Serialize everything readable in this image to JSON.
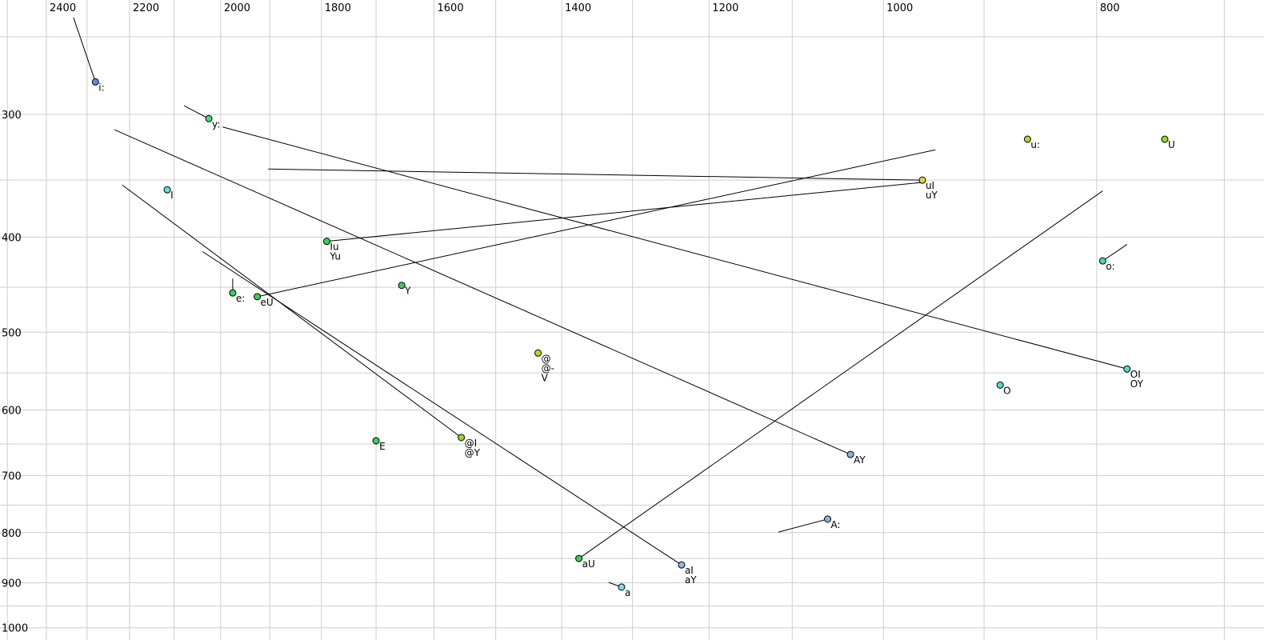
{
  "chart_data": {
    "type": "scatter",
    "title": "",
    "description": "Vowel formant chart: F2 (Hz, log scale, decreasing left-to-right) on top axis vs F1 (Hz, log scale, increasing downward) on left axis; monophthong and diphthong targets with glide trajectory lines",
    "x_axis": {
      "label": "",
      "unit": "Hz",
      "scale": "log",
      "reversed": true,
      "tick_labels": [
        2400,
        2200,
        2000,
        1800,
        1600,
        1400,
        1200,
        1000,
        800
      ],
      "gridline_values": [
        2500,
        2400,
        2300,
        2200,
        2100,
        2000,
        1900,
        1800,
        1700,
        1600,
        1500,
        1400,
        1300,
        1200,
        1100,
        1000,
        900,
        800,
        700
      ],
      "range_visible": [
        2520,
        670
      ]
    },
    "y_axis": {
      "label": "",
      "unit": "Hz",
      "scale": "log",
      "reversed": true,
      "tick_labels": [
        300,
        400,
        500,
        600,
        700,
        800,
        900,
        1000
      ],
      "gridline_values": [
        250,
        300,
        350,
        400,
        450,
        500,
        550,
        600,
        650,
        700,
        750,
        800,
        850,
        900,
        950,
        1000
      ],
      "range_visible": [
        245,
        1040
      ]
    },
    "points": [
      {
        "labels": [
          "i:"
        ],
        "f2": 2280,
        "f1": 278,
        "color": "#6688dd"
      },
      {
        "labels": [
          "y:"
        ],
        "f2": 2025,
        "f1": 303,
        "color": "#3fdc86"
      },
      {
        "labels": [
          "I"
        ],
        "f2": 2115,
        "f1": 358,
        "color": "#63dede"
      },
      {
        "labels": [
          "u:"
        ],
        "f2": 860,
        "f1": 318,
        "color": "#aadc2d"
      },
      {
        "labels": [
          "U"
        ],
        "f2": 745,
        "f1": 318,
        "color": "#8edc2d"
      },
      {
        "labels": [
          "uI",
          "uY"
        ],
        "f2": 960,
        "f1": 350,
        "color": "#d8dc28"
      },
      {
        "labels": [
          "Iu",
          "Yu"
        ],
        "f2": 1790,
        "f1": 404,
        "color": "#35cf5c"
      },
      {
        "labels": [
          "e:"
        ],
        "f2": 1975,
        "f1": 456,
        "color": "#35cf5c"
      },
      {
        "labels": [
          "eU"
        ],
        "f2": 1925,
        "f1": 460,
        "color": "#35cf5c"
      },
      {
        "labels": [
          "Y"
        ],
        "f2": 1655,
        "f1": 448,
        "color": "#35cf5c"
      },
      {
        "labels": [
          "@",
          "@-",
          "V"
        ],
        "f2": 1435,
        "f1": 525,
        "color": "#bcdc1e"
      },
      {
        "labels": [
          "E"
        ],
        "f2": 1700,
        "f1": 645,
        "color": "#35cf5c"
      },
      {
        "labels": [
          "@I",
          "@Y"
        ],
        "f2": 1555,
        "f1": 640,
        "color": "#9cd42a"
      },
      {
        "labels": [
          "aU"
        ],
        "f2": 1375,
        "f1": 850,
        "color": "#35cf5c"
      },
      {
        "labels": [
          "aI",
          "aY"
        ],
        "f2": 1235,
        "f1": 863,
        "color": "#90b4ec"
      },
      {
        "labels": [
          "a"
        ],
        "f2": 1315,
        "f1": 909,
        "color": "#7adede"
      },
      {
        "labels": [
          "AY"
        ],
        "f2": 1035,
        "f1": 666,
        "color": "#8ab2e8"
      },
      {
        "labels": [
          "A:"
        ],
        "f2": 1060,
        "f1": 775,
        "color": "#8ab2e8"
      },
      {
        "labels": [
          "O"
        ],
        "f2": 885,
        "f1": 566,
        "color": "#58d8c8"
      },
      {
        "labels": [
          "OI",
          "OY"
        ],
        "f2": 775,
        "f1": 545,
        "color": "#58d8c8"
      },
      {
        "labels": [
          "o:"
        ],
        "f2": 795,
        "f1": 423,
        "color": "#3fdc9a"
      }
    ],
    "trajectories": [
      {
        "label": "i:",
        "from": [
          2333,
          239
        ],
        "to": [
          2280,
          278
        ]
      },
      {
        "label": "y:",
        "from": [
          2078,
          294
        ],
        "to": [
          2025,
          303
        ]
      },
      {
        "label": "e:",
        "from": [
          1975,
          441
        ],
        "to": [
          1975,
          456
        ]
      },
      {
        "label": "uI",
        "from": [
          1903,
          341
        ],
        "to": [
          960,
          350
        ]
      },
      {
        "label": "Iu",
        "from": [
          1790,
          404
        ],
        "to": [
          962,
          352
        ]
      },
      {
        "label": "eU",
        "from": [
          1925,
          460
        ],
        "to": [
          947,
          326
        ]
      },
      {
        "label": "@I",
        "from": [
          2217,
          354
        ],
        "to": [
          1555,
          640
        ]
      },
      {
        "label": "aI",
        "from": [
          2038,
          414
        ],
        "to": [
          1235,
          863
        ]
      },
      {
        "label": "AY",
        "from": [
          2235,
          311
        ],
        "to": [
          1035,
          666
        ]
      },
      {
        "label": "OI",
        "from": [
          1996,
          309
        ],
        "to": [
          775,
          545
        ]
      },
      {
        "label": "aU",
        "from": [
          1375,
          850
        ],
        "to": [
          795,
          359
        ]
      },
      {
        "label": "o:",
        "from": [
          795,
          423
        ],
        "to": [
          775,
          407
        ]
      },
      {
        "label": "A:",
        "from": [
          1116,
          799
        ],
        "to": [
          1060,
          775
        ]
      },
      {
        "label": "a",
        "from": [
          1333,
          899
        ],
        "to": [
          1315,
          909
        ]
      }
    ],
    "legend": null,
    "grid": true
  },
  "colors": {
    "background": "#ffffff",
    "gridline": "#cdcdcd",
    "trajectory_line": "#000000",
    "point_stroke": "#000000",
    "text": "#000000"
  }
}
